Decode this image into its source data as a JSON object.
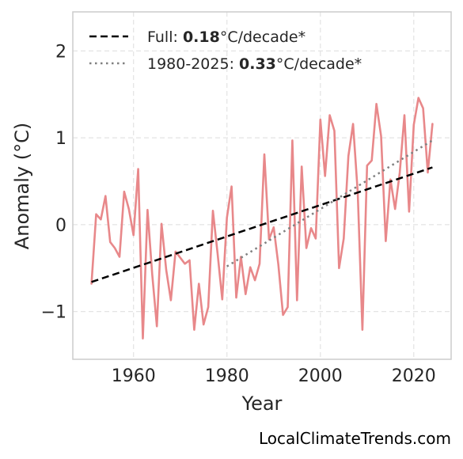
{
  "chart_data": {
    "type": "line",
    "xlabel": "Year",
    "ylabel": "Anomaly (°C)",
    "xlim": [
      1947,
      2028
    ],
    "ylim": [
      -1.55,
      2.45
    ],
    "x_ticks": [
      1960,
      1980,
      2000,
      2020
    ],
    "x_tick_labels": [
      "1960",
      "1980",
      "2000",
      "2020"
    ],
    "y_ticks": [
      -1,
      0,
      1,
      2
    ],
    "y_tick_labels": [
      "−1",
      "0",
      "1",
      "2"
    ],
    "grid": true,
    "legend_position": "top-left",
    "series": [
      {
        "style": "solid",
        "color": "#e8888a",
        "x": [
          1951,
          1952,
          1953,
          1954,
          1955,
          1956,
          1957,
          1958,
          1959,
          1960,
          1961,
          1962,
          1963,
          1964,
          1965,
          1966,
          1967,
          1968,
          1969,
          1970,
          1971,
          1972,
          1973,
          1974,
          1975,
          1976,
          1977,
          1978,
          1979,
          1980,
          1981,
          1982,
          1983,
          1984,
          1985,
          1986,
          1987,
          1988,
          1989,
          1990,
          1991,
          1992,
          1993,
          1994,
          1995,
          1996,
          1997,
          1998,
          1999,
          2000,
          2001,
          2002,
          2003,
          2004,
          2005,
          2006,
          2007,
          2008,
          2009,
          2010,
          2011,
          2012,
          2013,
          2014,
          2015,
          2016,
          2017,
          2018,
          2019,
          2020,
          2021,
          2022,
          2023,
          2024
        ],
        "y": [
          -0.68,
          0.12,
          0.06,
          0.33,
          -0.2,
          -0.27,
          -0.37,
          0.38,
          0.18,
          -0.12,
          0.64,
          -1.31,
          0.17,
          -0.57,
          -1.17,
          0.01,
          -0.52,
          -0.87,
          -0.31,
          -0.38,
          -0.45,
          -0.41,
          -1.21,
          -0.68,
          -1.15,
          -0.95,
          0.16,
          -0.33,
          -0.86,
          0.08,
          0.44,
          -0.84,
          -0.37,
          -0.8,
          -0.49,
          -0.64,
          -0.45,
          0.81,
          -0.17,
          -0.03,
          -0.46,
          -1.04,
          -0.95,
          0.97,
          -0.87,
          0.67,
          -0.27,
          -0.04,
          -0.16,
          1.21,
          0.56,
          1.26,
          1.08,
          -0.5,
          -0.16,
          0.79,
          1.16,
          0.37,
          -1.21,
          0.68,
          0.74,
          1.39,
          1.02,
          -0.19,
          0.52,
          0.18,
          0.6,
          1.26,
          0.15,
          1.15,
          1.46,
          1.34,
          0.6,
          1.16
        ]
      },
      {
        "name": "Full:",
        "style": "dashed",
        "color": "#000000",
        "x": [
          1951,
          2024
        ],
        "y": [
          -0.66,
          0.66
        ],
        "rate": "0.18",
        "unit": "°C/decade*"
      },
      {
        "name": "1980-2025:",
        "style": "dotted",
        "color": "#808080",
        "x": [
          1980,
          2024
        ],
        "y": [
          -0.48,
          0.97
        ],
        "rate": "0.33",
        "unit": "°C/decade*"
      }
    ]
  },
  "watermark": "LocalClimateTrends.com"
}
